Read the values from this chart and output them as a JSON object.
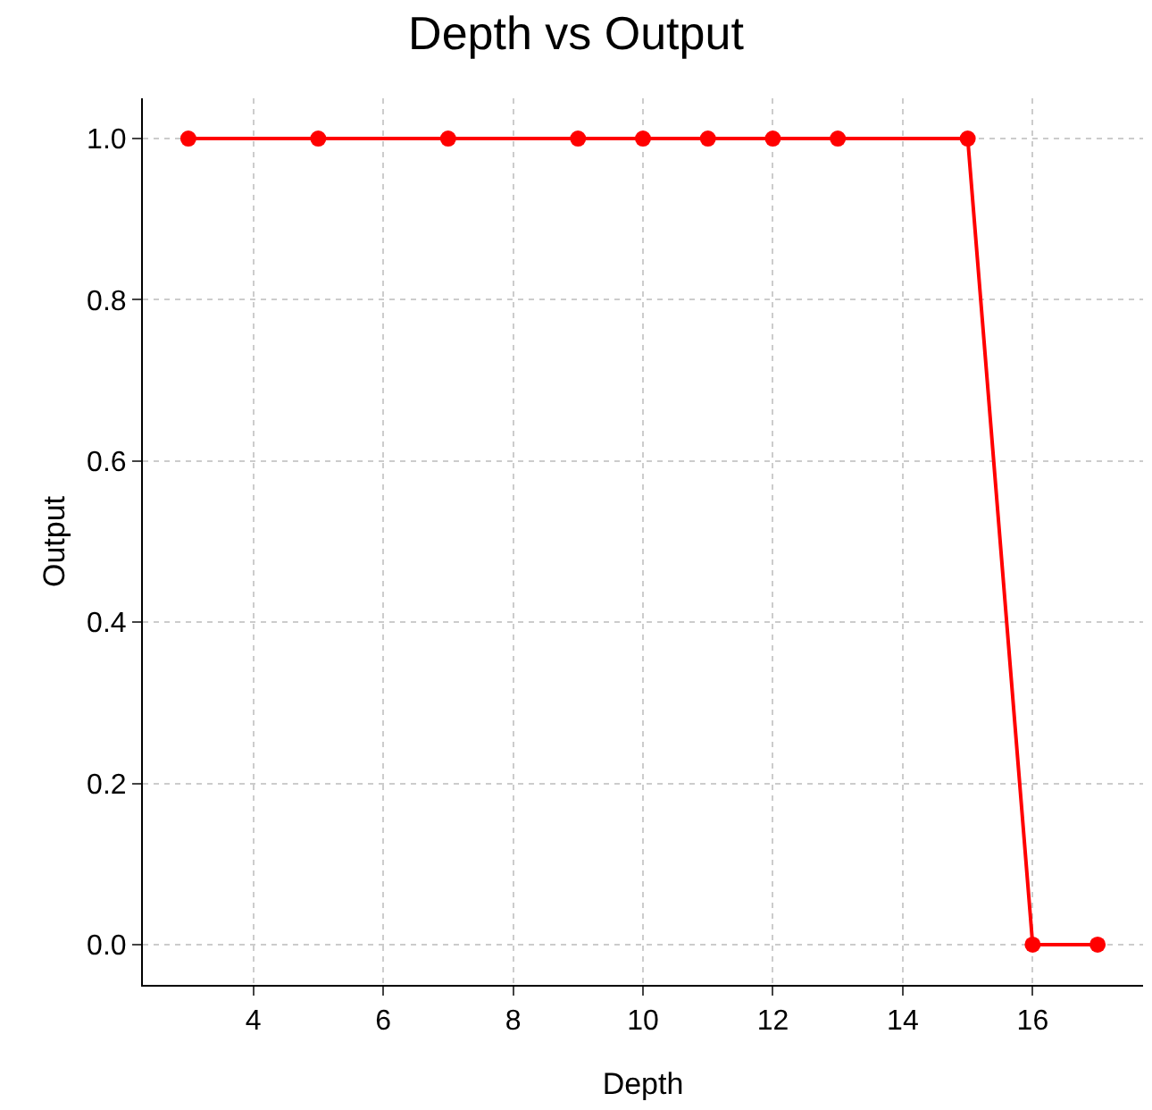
{
  "chart_data": {
    "type": "line",
    "title": "Depth vs Output",
    "xlabel": "Depth",
    "ylabel": "Output",
    "x": [
      3,
      5,
      7,
      9,
      10,
      11,
      12,
      13,
      15,
      16,
      17
    ],
    "series": [
      {
        "color": "#ff0000",
        "values": [
          1,
          1,
          1,
          1,
          1,
          1,
          1,
          1,
          1,
          0,
          0
        ]
      }
    ],
    "xlim": [
      2.3,
      17.7
    ],
    "xticks": [
      4,
      6,
      8,
      10,
      12,
      14,
      16
    ],
    "ylim": [
      -0.05,
      1.05
    ],
    "yticks": [
      {
        "value": 0,
        "label": "0.0"
      },
      {
        "value": 0.2,
        "label": "0.2"
      },
      {
        "value": 0.4,
        "label": "0.4"
      },
      {
        "value": 0.6,
        "label": "0.6"
      },
      {
        "value": 0.8,
        "label": "0.8"
      },
      {
        "value": 1,
        "label": "1.0"
      }
    ],
    "grid": true,
    "marker": "circle",
    "line_style": "solid"
  }
}
